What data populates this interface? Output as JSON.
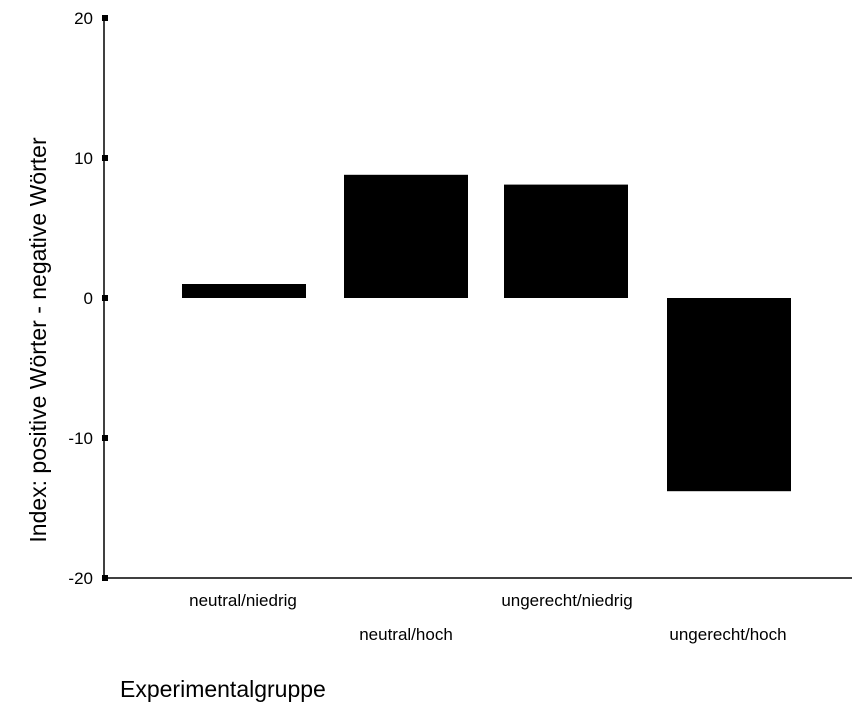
{
  "chart_data": {
    "type": "bar",
    "title": "",
    "xlabel": "Experimentalgruppe",
    "ylabel": "Index: positive Wörter - negative Wörter",
    "categories": [
      "neutral/niedrig",
      "neutral/hoch",
      "ungerecht/niedrig",
      "ungerecht/hoch"
    ],
    "values": [
      1.0,
      8.8,
      8.1,
      -13.8
    ],
    "ylim": [
      -20,
      20
    ],
    "yticks": [
      20,
      10,
      0,
      -10,
      -20
    ],
    "yticklabels": [
      "20",
      "10",
      "0",
      "-10",
      "-20"
    ],
    "grid": false,
    "bar_color": "#000000"
  }
}
